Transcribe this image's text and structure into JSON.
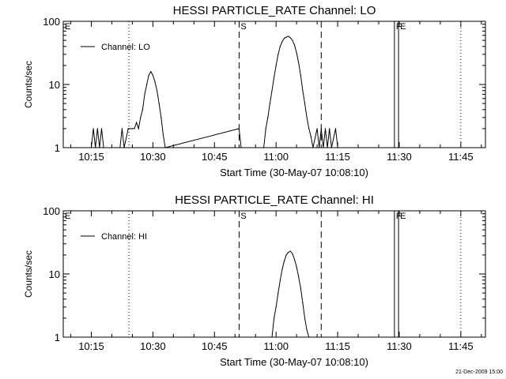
{
  "chart_data": [
    {
      "type": "line",
      "title": "HESSI PARTICLE_RATE Channel: LO",
      "xlabel": "Start Time (30-May-07 10:08:10)",
      "ylabel": "Counts/sec",
      "yscale": "log",
      "ylim": [
        1,
        100
      ],
      "xlim": [
        "10:08:10",
        "11:51:00"
      ],
      "xticks": [
        "10:15",
        "10:30",
        "10:45",
        "11:00",
        "11:15",
        "11:30",
        "11:45"
      ],
      "yticks": [
        "1",
        "10",
        "100"
      ],
      "legend": {
        "label": "Channel: LO",
        "placement": "top-left"
      },
      "event_markers": [
        {
          "label": "E",
          "time": "10:08:10",
          "style": "none"
        },
        {
          "label": "",
          "time": "10:24:10",
          "style": "dotted"
        },
        {
          "label": "S",
          "time": "10:51:00",
          "style": "dashed"
        },
        {
          "label": "",
          "time": "11:11:00",
          "style": "dashed"
        },
        {
          "label": "F",
          "time": "11:28:50",
          "style": "solid"
        },
        {
          "label": "E",
          "time": "11:29:50",
          "style": "solid"
        },
        {
          "label": "",
          "time": "11:45:00",
          "style": "dotted"
        }
      ],
      "series": [
        {
          "name": "Channel: LO",
          "points": [
            [
              "10:15:00",
              1
            ],
            [
              "10:15:30",
              2
            ],
            [
              "10:16:00",
              1
            ],
            [
              "10:16:30",
              2
            ],
            [
              "10:17:00",
              1
            ],
            [
              "10:17:30",
              2
            ],
            [
              "10:18:00",
              1
            ],
            [
              "10:22:00",
              1
            ],
            [
              "10:22:30",
              2
            ],
            [
              "10:23:00",
              1
            ],
            [
              "10:24:00",
              2
            ],
            [
              "10:25:00",
              2
            ],
            [
              "10:25:30",
              2
            ],
            [
              "10:26:00",
              2.5
            ],
            [
              "10:26:30",
              2
            ],
            [
              "10:27:00",
              3
            ],
            [
              "10:27:30",
              4
            ],
            [
              "10:28:00",
              7
            ],
            [
              "10:28:30",
              10
            ],
            [
              "10:29:00",
              14
            ],
            [
              "10:29:30",
              16
            ],
            [
              "10:30:00",
              14
            ],
            [
              "10:30:30",
              11
            ],
            [
              "10:31:00",
              8
            ],
            [
              "10:31:30",
              5
            ],
            [
              "10:32:00",
              3
            ],
            [
              "10:32:30",
              1.6
            ],
            [
              "10:33:00",
              1
            ],
            [
              "10:51:00",
              2
            ],
            [
              "10:51:30",
              1
            ],
            [
              "10:57:00",
              1
            ],
            [
              "10:57:30",
              2
            ],
            [
              "10:58:00",
              3
            ],
            [
              "10:58:30",
              5
            ],
            [
              "10:59:00",
              8
            ],
            [
              "10:59:30",
              13
            ],
            [
              "11:00:00",
              20
            ],
            [
              "11:00:30",
              30
            ],
            [
              "11:01:00",
              40
            ],
            [
              "11:01:30",
              48
            ],
            [
              "11:02:00",
              54
            ],
            [
              "11:02:30",
              56
            ],
            [
              "11:03:00",
              58
            ],
            [
              "11:03:30",
              55
            ],
            [
              "11:04:00",
              50
            ],
            [
              "11:04:30",
              42
            ],
            [
              "11:05:00",
              32
            ],
            [
              "11:05:30",
              22
            ],
            [
              "11:06:00",
              14
            ],
            [
              "11:06:30",
              8
            ],
            [
              "11:07:00",
              5
            ],
            [
              "11:07:30",
              3
            ],
            [
              "11:08:00",
              2
            ],
            [
              "11:08:30",
              1.5
            ],
            [
              "11:09:00",
              1
            ],
            [
              "11:10:00",
              2
            ],
            [
              "11:10:30",
              1
            ],
            [
              "11:11:00",
              2
            ],
            [
              "11:11:30",
              1
            ],
            [
              "11:12:00",
              2
            ],
            [
              "11:12:30",
              1
            ],
            [
              "11:13:00",
              2
            ],
            [
              "11:13:30",
              1
            ],
            [
              "11:14:30",
              2
            ],
            [
              "11:15:00",
              1
            ]
          ]
        }
      ]
    },
    {
      "type": "line",
      "title": "HESSI PARTICLE_RATE Channel: HI",
      "xlabel": "Start Time (30-May-07 10:08:10)",
      "ylabel": "Counts/sec",
      "yscale": "log",
      "ylim": [
        1,
        100
      ],
      "xlim": [
        "10:08:10",
        "11:51:00"
      ],
      "xticks": [
        "10:15",
        "10:30",
        "10:45",
        "11:00",
        "11:15",
        "11:30",
        "11:45"
      ],
      "yticks": [
        "1",
        "10",
        "100"
      ],
      "legend": {
        "label": "Channel: HI",
        "placement": "top-left"
      },
      "event_markers": [
        {
          "label": "E",
          "time": "10:08:10",
          "style": "none"
        },
        {
          "label": "",
          "time": "10:24:10",
          "style": "dotted"
        },
        {
          "label": "S",
          "time": "10:51:00",
          "style": "dashed"
        },
        {
          "label": "",
          "time": "11:11:00",
          "style": "dashed"
        },
        {
          "label": "F",
          "time": "11:28:50",
          "style": "solid"
        },
        {
          "label": "E",
          "time": "11:29:50",
          "style": "solid"
        },
        {
          "label": "",
          "time": "11:45:00",
          "style": "dotted"
        }
      ],
      "series": [
        {
          "name": "Channel: HI",
          "points": [
            [
              "10:59:00",
              1
            ],
            [
              "10:59:30",
              2
            ],
            [
              "11:00:00",
              3
            ],
            [
              "11:00:30",
              5
            ],
            [
              "11:01:00",
              8
            ],
            [
              "11:01:30",
              12
            ],
            [
              "11:02:00",
              16
            ],
            [
              "11:02:30",
              20
            ],
            [
              "11:03:00",
              22
            ],
            [
              "11:03:30",
              23
            ],
            [
              "11:04:00",
              21
            ],
            [
              "11:04:30",
              17
            ],
            [
              "11:05:00",
              13
            ],
            [
              "11:05:30",
              9
            ],
            [
              "11:06:00",
              6
            ],
            [
              "11:06:30",
              3.5
            ],
            [
              "11:07:00",
              2
            ],
            [
              "11:07:30",
              1.3
            ],
            [
              "11:08:00",
              1
            ]
          ]
        }
      ]
    }
  ],
  "footer": {
    "timestamp": "21-Dec-2009 15:00"
  }
}
